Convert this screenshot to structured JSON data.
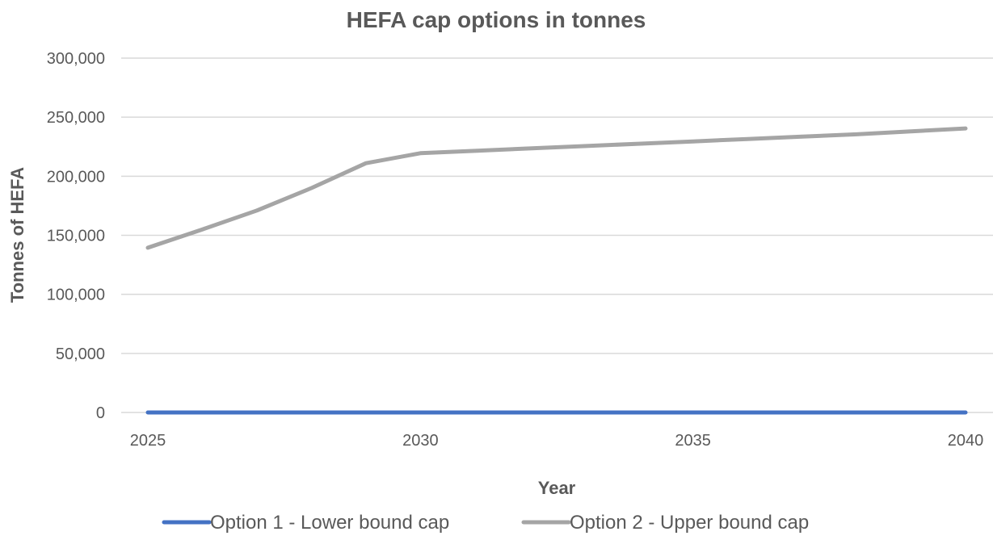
{
  "chart_data": {
    "type": "line",
    "title": "HEFA cap options in tonnes",
    "xlabel": "Year",
    "ylabel": "Tonnes of HEFA",
    "x": [
      2025,
      2026,
      2027,
      2028,
      2029,
      2030,
      2031,
      2032,
      2033,
      2034,
      2035,
      2036,
      2037,
      2038,
      2039,
      2040
    ],
    "x_tick_labels": [
      "2025",
      "2030",
      "2035",
      "2040"
    ],
    "x_ticks": [
      2025,
      2030,
      2035,
      2040
    ],
    "xlim": [
      2025,
      2040
    ],
    "ylim": [
      0,
      300000
    ],
    "y_ticks": [
      0,
      50000,
      100000,
      150000,
      200000,
      250000,
      300000
    ],
    "y_tick_labels": [
      "0",
      "50,000",
      "100,000",
      "150,000",
      "200,000",
      "250,000",
      "300,000"
    ],
    "grid": "horizontal",
    "legend_position": "bottom",
    "series": [
      {
        "name": "Option 1 - Lower bound cap",
        "color": "#4472C4",
        "values": [
          0,
          0,
          0,
          0,
          0,
          0,
          0,
          0,
          0,
          0,
          0,
          0,
          0,
          0,
          0,
          0
        ]
      },
      {
        "name": "Option 2 - Upper bound cap",
        "color": "#A5A5A5",
        "values": [
          139500,
          155000,
          171000,
          190000,
          211000,
          219500,
          221500,
          223500,
          225500,
          227500,
          229500,
          231500,
          233500,
          235500,
          238000,
          240500
        ]
      }
    ]
  }
}
